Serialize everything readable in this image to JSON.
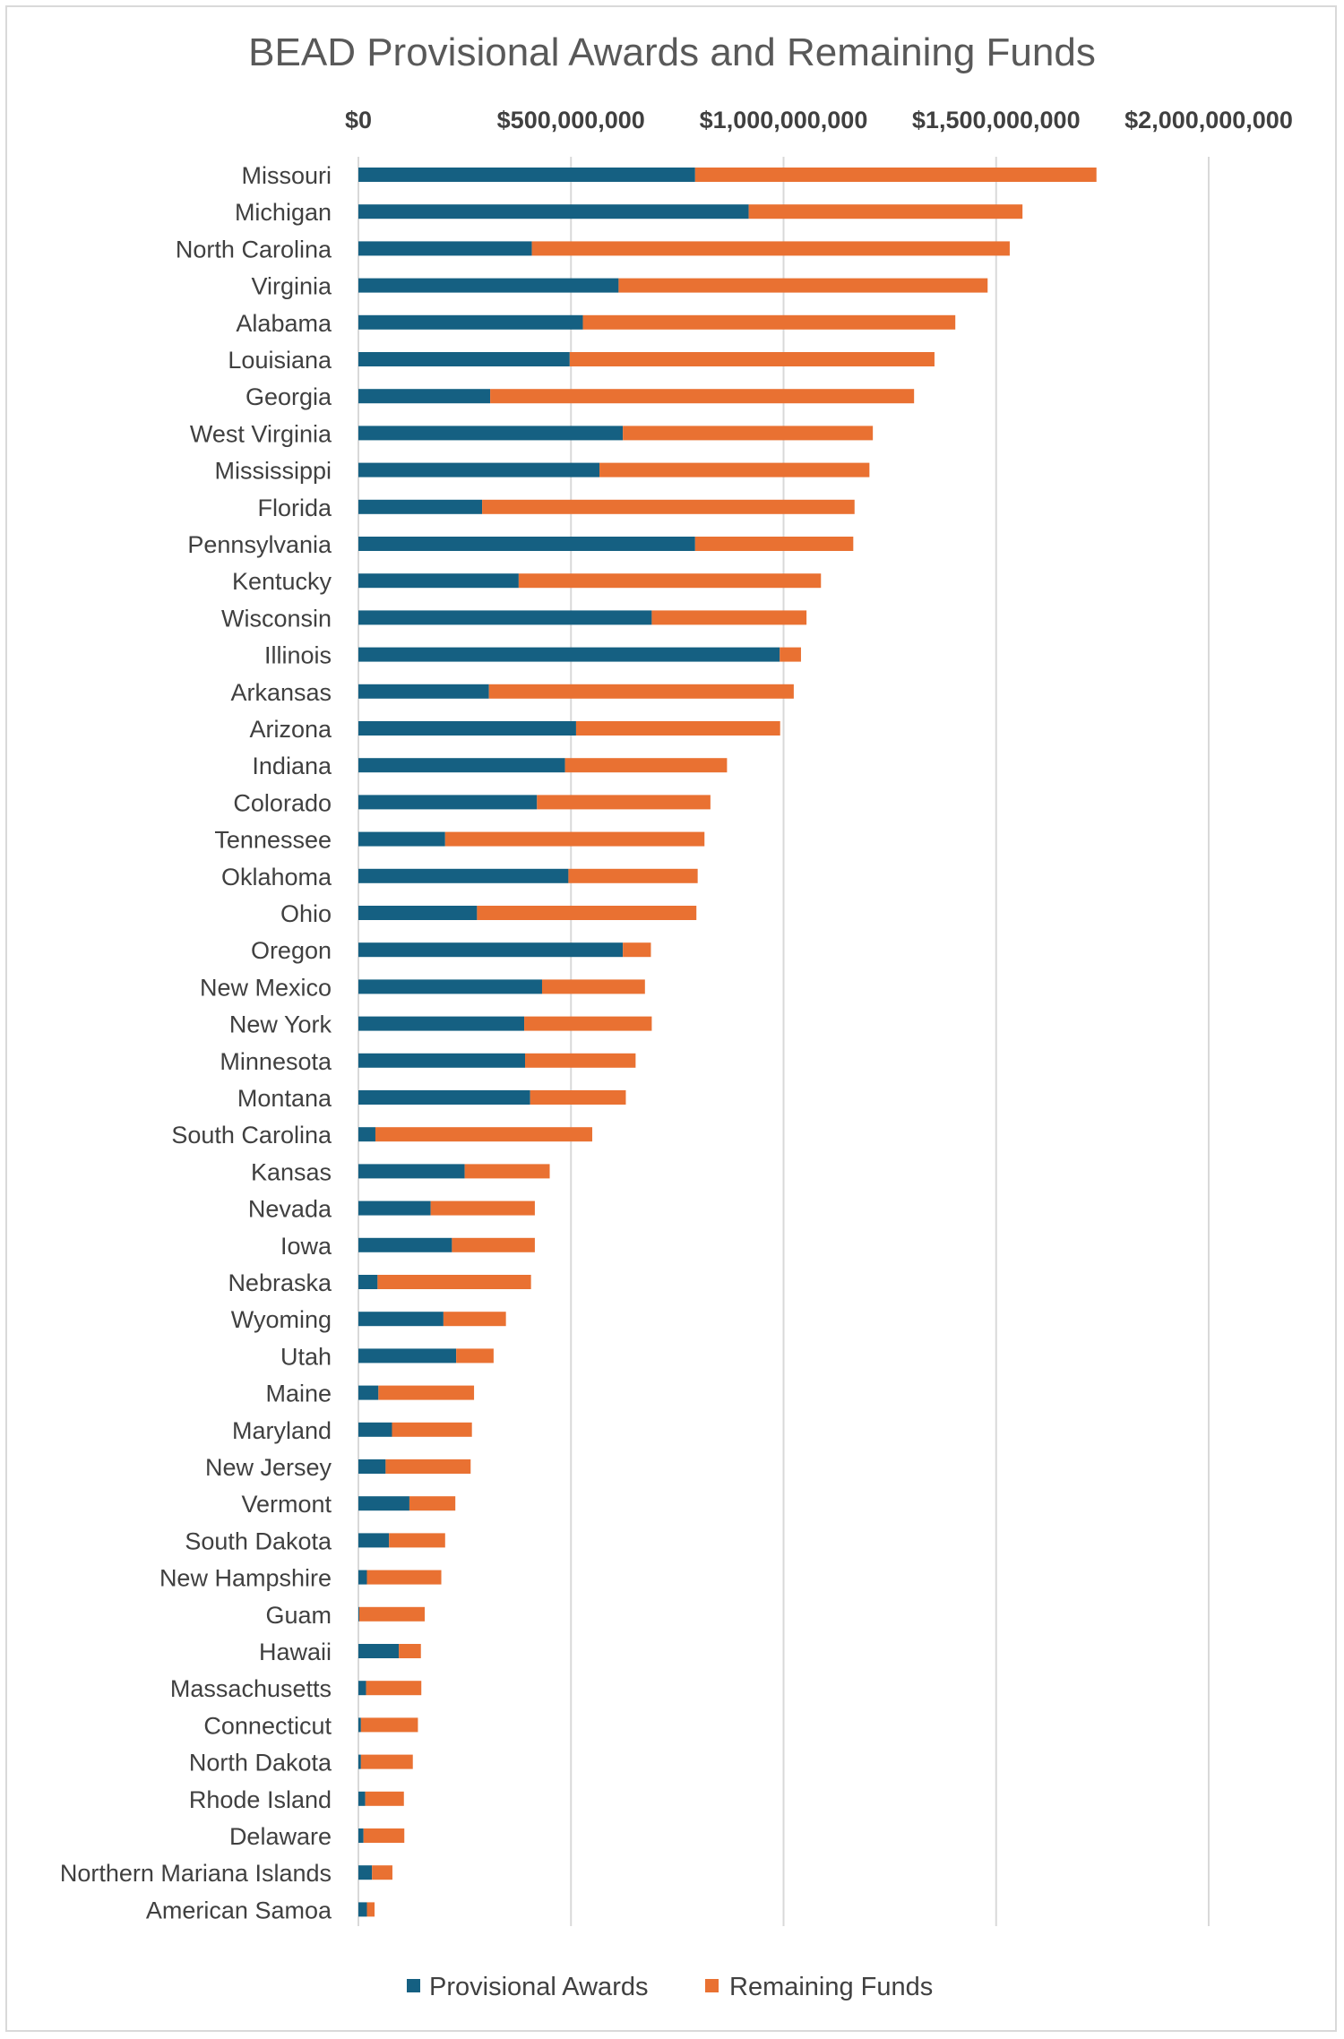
{
  "chart_data": {
    "type": "bar",
    "orientation": "horizontal",
    "stacked": true,
    "title": "BEAD Provisional Awards and Remaining Funds",
    "xlim": [
      0,
      2000000000
    ],
    "x_ticks": [
      0,
      500000000,
      1000000000,
      1500000000,
      2000000000
    ],
    "x_tick_labels": [
      "$0",
      "$500,000,000",
      "$1,000,000,000",
      "$1,500,000,000",
      "$2,000,000,000"
    ],
    "x_axis_position": "top",
    "grid": true,
    "legend_position": "bottom",
    "categories": [
      "Missouri",
      "Michigan",
      "North Carolina",
      "Virginia",
      "Alabama",
      "Louisiana",
      "Georgia",
      "West Virginia",
      "Mississippi",
      "Florida",
      "Pennsylvania",
      "Kentucky",
      "Wisconsin",
      "Illinois",
      "Arkansas",
      "Arizona",
      "Indiana",
      "Colorado",
      "Tennessee",
      "Oklahoma",
      "Ohio",
      "Oregon",
      "New Mexico",
      "New York",
      "Minnesota",
      "Montana",
      "South Carolina",
      "Kansas",
      "Nevada",
      "Iowa",
      "Nebraska",
      "Wyoming",
      "Utah",
      "Maine",
      "Maryland",
      "New Jersey",
      "Vermont",
      "South Dakota",
      "New Hampshire",
      "Guam",
      "Hawaii",
      "Massachusetts",
      "Connecticut",
      "North Dakota",
      "Rhode Island",
      "Delaware",
      "Northern Mariana Islands",
      "American Samoa"
    ],
    "series": [
      {
        "name": "Provisional Awards",
        "color": "#156082",
        "values": [
          792000000,
          918000000,
          408000000,
          612000000,
          528000000,
          497000000,
          310000000,
          622000000,
          567000000,
          291000000,
          792000000,
          377000000,
          690000000,
          991000000,
          307000000,
          512000000,
          486000000,
          420000000,
          204000000,
          494000000,
          279000000,
          622000000,
          432000000,
          390000000,
          392000000,
          404000000,
          40000000,
          250000000,
          170000000,
          220000000,
          45000000,
          200000000,
          230000000,
          47000000,
          79000000,
          64000000,
          120000000,
          72000000,
          20000000,
          2000000,
          95000000,
          18000000,
          6000000,
          6000000,
          16000000,
          12000000,
          32000000,
          20000000
        ]
      },
      {
        "name": "Remaining Funds",
        "color": "#E97132",
        "values": [
          944000000,
          644000000,
          1124000000,
          868000000,
          876000000,
          858000000,
          997000000,
          588000000,
          635000000,
          876000000,
          372000000,
          711000000,
          364000000,
          50000000,
          717000000,
          480000000,
          381000000,
          408000000,
          610000000,
          304000000,
          516000000,
          66000000,
          242000000,
          300000000,
          260000000,
          225000000,
          510000000,
          200000000,
          245000000,
          195000000,
          361000000,
          147000000,
          88000000,
          225000000,
          188000000,
          200000000,
          108000000,
          132000000,
          175000000,
          154000000,
          52000000,
          130000000,
          134000000,
          122000000,
          91000000,
          96000000,
          48000000,
          18000000
        ]
      }
    ]
  }
}
